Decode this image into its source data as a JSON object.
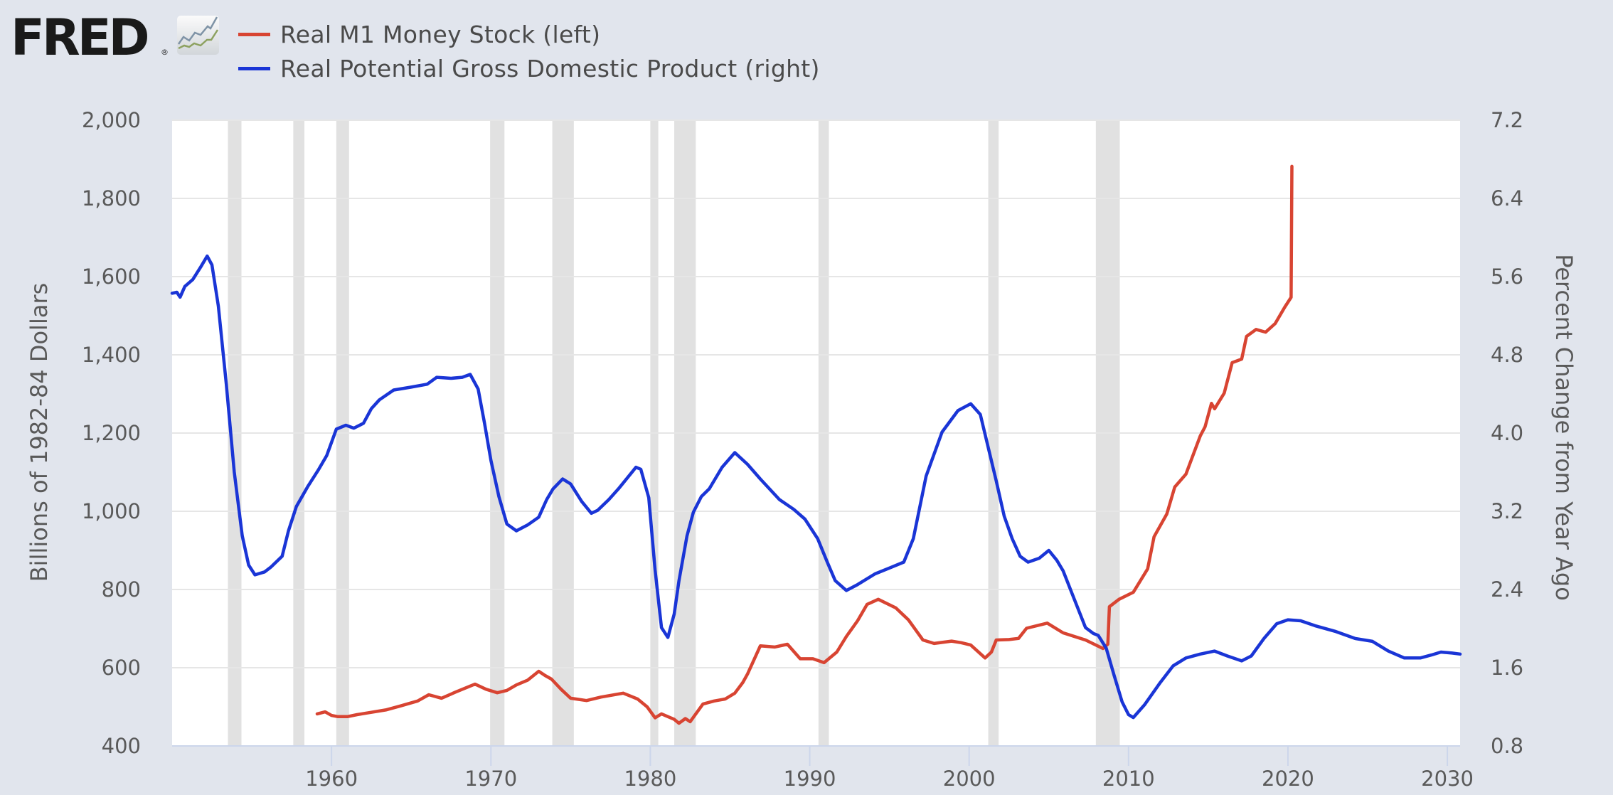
{
  "header": {
    "logo_text": "FRED",
    "logo_mark": "®",
    "logo_icon": "fred-chart-icon"
  },
  "colors": {
    "series_red": "#d84432",
    "series_blue": "#1a35d6",
    "recession": "#e1e1e1",
    "grid": "#e6e6e6",
    "plot_bg": "#ffffff",
    "page_bg": "#e1e5ed",
    "axis_line": "#ccd6eb"
  },
  "chart_data": {
    "type": "line",
    "title": "",
    "legend_position": "top-left",
    "grid": true,
    "xlabel": "",
    "xlim": [
      1950.0,
      2030.8
    ],
    "x_ticks": [
      1960,
      1970,
      1980,
      1990,
      2000,
      2010,
      2020,
      2030
    ],
    "x_tick_labels": [
      "1960",
      "1970",
      "1980",
      "1990",
      "2000",
      "2010",
      "2020",
      "2030"
    ],
    "y_left": {
      "label": "Billions of 1982-84 Dollars",
      "range": [
        400,
        2000
      ],
      "ticks": [
        400,
        600,
        800,
        1000,
        1200,
        1400,
        1600,
        1800,
        2000
      ],
      "tick_labels": [
        "400",
        "600",
        "800",
        "1,000",
        "1,200",
        "1,400",
        "1,600",
        "1,800",
        "2,000"
      ]
    },
    "y_right": {
      "label": "Percent Change from Year Ago",
      "range": [
        0.8,
        7.2
      ],
      "ticks": [
        0.8,
        1.6,
        2.4,
        3.2,
        4.0,
        4.8,
        5.6,
        6.4,
        7.2
      ],
      "tick_labels": [
        "0.8",
        "1.6",
        "2.4",
        "3.2",
        "4.0",
        "4.8",
        "5.6",
        "6.4",
        "7.2"
      ]
    },
    "recessions": [
      [
        1953.5,
        1954.35
      ],
      [
        1957.6,
        1958.3
      ],
      [
        1960.3,
        1961.1
      ],
      [
        1969.95,
        1970.85
      ],
      [
        1973.85,
        1975.2
      ],
      [
        1980.0,
        1980.5
      ],
      [
        1981.5,
        1982.85
      ],
      [
        1990.55,
        1991.2
      ],
      [
        2001.2,
        2001.85
      ],
      [
        2007.95,
        2009.45
      ]
    ],
    "series": [
      {
        "name": "Real M1 Money Stock (left)",
        "axis": "left",
        "color": "#d84432",
        "points": [
          [
            1959.1,
            482
          ],
          [
            1959.6,
            487
          ],
          [
            1960.0,
            478
          ],
          [
            1960.4,
            475
          ],
          [
            1961.0,
            475
          ],
          [
            1961.6,
            480
          ],
          [
            1962.5,
            486
          ],
          [
            1963.4,
            492
          ],
          [
            1964.3,
            502
          ],
          [
            1965.4,
            515
          ],
          [
            1966.1,
            531
          ],
          [
            1966.9,
            522
          ],
          [
            1967.8,
            538
          ],
          [
            1969.0,
            558
          ],
          [
            1969.7,
            545
          ],
          [
            1970.4,
            536
          ],
          [
            1971.0,
            542
          ],
          [
            1971.6,
            556
          ],
          [
            1972.3,
            568
          ],
          [
            1973.0,
            591
          ],
          [
            1973.4,
            580
          ],
          [
            1973.8,
            571
          ],
          [
            1974.4,
            545
          ],
          [
            1975.0,
            522
          ],
          [
            1976.0,
            516
          ],
          [
            1976.9,
            525
          ],
          [
            1978.3,
            535
          ],
          [
            1979.2,
            520
          ],
          [
            1979.8,
            500
          ],
          [
            1980.3,
            472
          ],
          [
            1980.7,
            482
          ],
          [
            1981.1,
            475
          ],
          [
            1981.5,
            468
          ],
          [
            1981.8,
            458
          ],
          [
            1982.2,
            470
          ],
          [
            1982.5,
            462
          ],
          [
            1983.3,
            507
          ],
          [
            1984.0,
            515
          ],
          [
            1984.7,
            520
          ],
          [
            1985.3,
            535
          ],
          [
            1985.8,
            562
          ],
          [
            1986.1,
            584
          ],
          [
            1986.9,
            656
          ],
          [
            1987.8,
            653
          ],
          [
            1988.6,
            660
          ],
          [
            1989.4,
            623
          ],
          [
            1990.2,
            623
          ],
          [
            1990.9,
            613
          ],
          [
            1991.7,
            640
          ],
          [
            1992.3,
            680
          ],
          [
            1993.0,
            720
          ],
          [
            1993.6,
            762
          ],
          [
            1994.3,
            775
          ],
          [
            1995.4,
            753
          ],
          [
            1996.2,
            722
          ],
          [
            1997.1,
            671
          ],
          [
            1997.8,
            662
          ],
          [
            1998.9,
            668
          ],
          [
            1999.5,
            664
          ],
          [
            2000.1,
            658
          ],
          [
            2001.0,
            625
          ],
          [
            2001.4,
            640
          ],
          [
            2001.7,
            671
          ],
          [
            2002.5,
            672
          ],
          [
            2003.1,
            675
          ],
          [
            2003.6,
            701
          ],
          [
            2004.9,
            714
          ],
          [
            2005.9,
            689
          ],
          [
            2007.3,
            671
          ],
          [
            2008.4,
            649
          ],
          [
            2008.7,
            660
          ],
          [
            2008.8,
            756
          ],
          [
            2009.4,
            775
          ],
          [
            2010.3,
            793
          ],
          [
            2011.2,
            853
          ],
          [
            2011.6,
            935
          ],
          [
            2012.4,
            993
          ],
          [
            2012.9,
            1062
          ],
          [
            2013.6,
            1095
          ],
          [
            2014.5,
            1193
          ],
          [
            2014.8,
            1216
          ],
          [
            2015.2,
            1276
          ],
          [
            2015.4,
            1262
          ],
          [
            2016.0,
            1302
          ],
          [
            2016.5,
            1380
          ],
          [
            2017.1,
            1389
          ],
          [
            2017.4,
            1447
          ],
          [
            2018.0,
            1465
          ],
          [
            2018.6,
            1458
          ],
          [
            2019.2,
            1480
          ],
          [
            2019.8,
            1522
          ],
          [
            2020.2,
            1547
          ],
          [
            2020.25,
            1882
          ]
        ]
      },
      {
        "name": "Real Potential Gross Domestic Product (right)",
        "axis": "right",
        "color": "#1a35d6",
        "points": [
          [
            1950.0,
            5.43
          ],
          [
            1950.3,
            5.44
          ],
          [
            1950.5,
            5.39
          ],
          [
            1950.8,
            5.5
          ],
          [
            1951.3,
            5.57
          ],
          [
            1951.8,
            5.7
          ],
          [
            1952.2,
            5.81
          ],
          [
            1952.5,
            5.72
          ],
          [
            1952.9,
            5.3
          ],
          [
            1953.4,
            4.5
          ],
          [
            1953.9,
            3.6
          ],
          [
            1954.4,
            2.95
          ],
          [
            1954.8,
            2.65
          ],
          [
            1955.2,
            2.55
          ],
          [
            1955.8,
            2.58
          ],
          [
            1956.2,
            2.63
          ],
          [
            1956.9,
            2.74
          ],
          [
            1957.3,
            3.0
          ],
          [
            1957.8,
            3.25
          ],
          [
            1958.5,
            3.45
          ],
          [
            1959.2,
            3.63
          ],
          [
            1959.7,
            3.77
          ],
          [
            1960.3,
            4.04
          ],
          [
            1960.9,
            4.08
          ],
          [
            1961.4,
            4.05
          ],
          [
            1962.0,
            4.1
          ],
          [
            1962.5,
            4.25
          ],
          [
            1963.0,
            4.34
          ],
          [
            1963.9,
            4.44
          ],
          [
            1965.0,
            4.47
          ],
          [
            1966.0,
            4.5
          ],
          [
            1966.6,
            4.57
          ],
          [
            1967.5,
            4.56
          ],
          [
            1968.2,
            4.57
          ],
          [
            1968.7,
            4.6
          ],
          [
            1969.2,
            4.45
          ],
          [
            1969.6,
            4.1
          ],
          [
            1970.0,
            3.72
          ],
          [
            1970.5,
            3.35
          ],
          [
            1971.0,
            3.07
          ],
          [
            1971.6,
            3.0
          ],
          [
            1972.3,
            3.06
          ],
          [
            1973.0,
            3.14
          ],
          [
            1973.5,
            3.32
          ],
          [
            1973.9,
            3.43
          ],
          [
            1974.5,
            3.53
          ],
          [
            1975.0,
            3.48
          ],
          [
            1975.7,
            3.3
          ],
          [
            1976.3,
            3.18
          ],
          [
            1976.7,
            3.21
          ],
          [
            1977.4,
            3.32
          ],
          [
            1978.0,
            3.43
          ],
          [
            1979.1,
            3.65
          ],
          [
            1979.4,
            3.63
          ],
          [
            1979.9,
            3.34
          ],
          [
            1980.3,
            2.6
          ],
          [
            1980.7,
            2.01
          ],
          [
            1981.1,
            1.91
          ],
          [
            1981.5,
            2.15
          ],
          [
            1981.8,
            2.49
          ],
          [
            1982.3,
            2.95
          ],
          [
            1982.7,
            3.19
          ],
          [
            1983.2,
            3.35
          ],
          [
            1983.7,
            3.43
          ],
          [
            1984.5,
            3.65
          ],
          [
            1985.3,
            3.8
          ],
          [
            1986.1,
            3.68
          ],
          [
            1986.9,
            3.53
          ],
          [
            1988.1,
            3.32
          ],
          [
            1989.0,
            3.22
          ],
          [
            1989.7,
            3.12
          ],
          [
            1990.5,
            2.92
          ],
          [
            1991.1,
            2.68
          ],
          [
            1991.6,
            2.49
          ],
          [
            1992.3,
            2.39
          ],
          [
            1993.0,
            2.45
          ],
          [
            1994.1,
            2.56
          ],
          [
            1995.0,
            2.62
          ],
          [
            1995.9,
            2.68
          ],
          [
            1996.5,
            2.92
          ],
          [
            1997.3,
            3.56
          ],
          [
            1998.3,
            4.01
          ],
          [
            1999.3,
            4.23
          ],
          [
            2000.1,
            4.3
          ],
          [
            2000.7,
            4.19
          ],
          [
            2001.2,
            3.85
          ],
          [
            2001.7,
            3.51
          ],
          [
            2002.2,
            3.15
          ],
          [
            2002.7,
            2.92
          ],
          [
            2003.2,
            2.74
          ],
          [
            2003.7,
            2.68
          ],
          [
            2004.4,
            2.72
          ],
          [
            2005.0,
            2.8
          ],
          [
            2005.5,
            2.7
          ],
          [
            2005.9,
            2.59
          ],
          [
            2006.6,
            2.3
          ],
          [
            2007.3,
            2.01
          ],
          [
            2007.8,
            1.95
          ],
          [
            2008.1,
            1.93
          ],
          [
            2008.6,
            1.8
          ],
          [
            2009.1,
            1.52
          ],
          [
            2009.6,
            1.25
          ],
          [
            2010.0,
            1.12
          ],
          [
            2010.3,
            1.09
          ],
          [
            2011.0,
            1.22
          ],
          [
            2012.0,
            1.45
          ],
          [
            2012.8,
            1.62
          ],
          [
            2013.6,
            1.7
          ],
          [
            2014.5,
            1.74
          ],
          [
            2015.4,
            1.77
          ],
          [
            2016.2,
            1.72
          ],
          [
            2017.1,
            1.67
          ],
          [
            2017.7,
            1.72
          ],
          [
            2018.5,
            1.9
          ],
          [
            2019.3,
            2.05
          ],
          [
            2020.0,
            2.09
          ],
          [
            2020.8,
            2.08
          ],
          [
            2021.7,
            2.03
          ],
          [
            2023.0,
            1.97
          ],
          [
            2024.2,
            1.9
          ],
          [
            2025.3,
            1.87
          ],
          [
            2026.3,
            1.77
          ],
          [
            2027.3,
            1.7
          ],
          [
            2028.3,
            1.7
          ],
          [
            2029.0,
            1.73
          ],
          [
            2029.6,
            1.76
          ],
          [
            2030.3,
            1.75
          ],
          [
            2030.8,
            1.74
          ]
        ]
      }
    ]
  }
}
